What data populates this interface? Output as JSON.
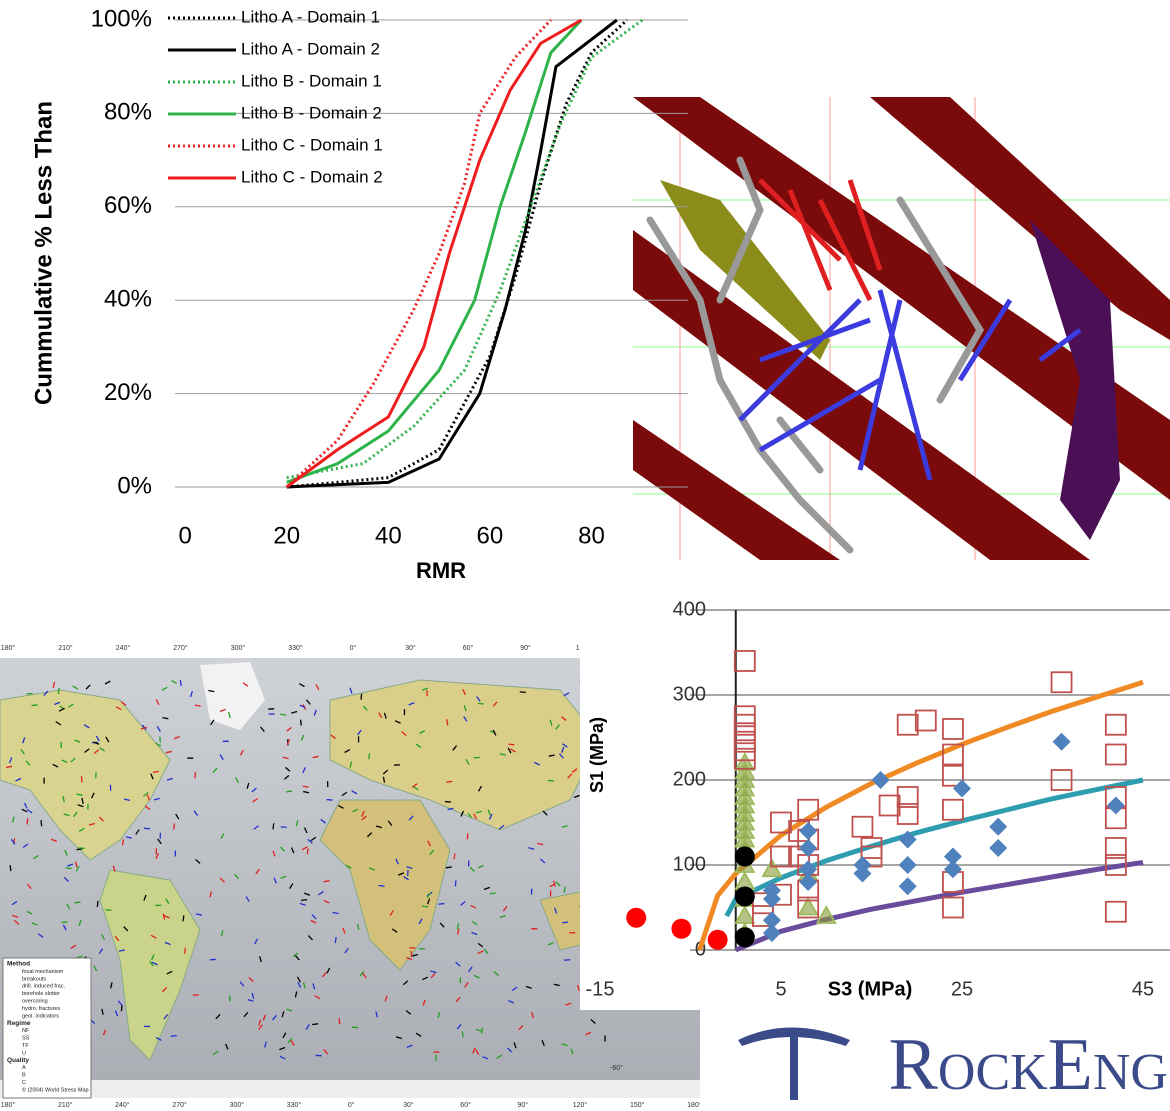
{
  "chart_data": [
    {
      "type": "line",
      "y_label": "Cummulative % Less Than",
      "x_label": "RMR",
      "xlim": [
        -2,
        99
      ],
      "xticks": [
        0,
        20,
        40,
        60,
        80
      ],
      "ylim": [
        0,
        100
      ],
      "yticks": [
        {
          "value": 0,
          "label": "0%"
        },
        {
          "value": 20,
          "label": "20%"
        },
        {
          "value": 40,
          "label": "40%"
        },
        {
          "value": 60,
          "label": "60%"
        },
        {
          "value": 80,
          "label": "80%"
        },
        {
          "value": 100,
          "label": "100%"
        }
      ],
      "grid": true,
      "legend": "top-left",
      "series": [
        {
          "name": "Litho A - Domain 1",
          "color": "#000000",
          "dash": true,
          "x": [
            20,
            40,
            50,
            60,
            65,
            70,
            75,
            80,
            87
          ],
          "values": [
            0,
            2,
            8,
            28,
            45,
            65,
            82,
            93,
            100
          ]
        },
        {
          "name": "Litho A - Domain 2",
          "color": "#000000",
          "dash": false,
          "x": [
            20,
            40,
            50,
            58,
            63,
            67,
            70,
            73,
            85
          ],
          "values": [
            0,
            1,
            6,
            20,
            38,
            55,
            72,
            90,
            100
          ]
        },
        {
          "name": "Litho B - Domain 1",
          "color": "#2eb34a",
          "dash": true,
          "x": [
            20,
            35,
            45,
            55,
            62,
            68,
            74,
            80,
            90
          ],
          "values": [
            2,
            5,
            13,
            25,
            42,
            60,
            78,
            92,
            100
          ]
        },
        {
          "name": "Litho B - Domain 2",
          "color": "#2eb34a",
          "dash": false,
          "x": [
            20,
            30,
            40,
            50,
            57,
            62,
            67,
            72,
            78
          ],
          "values": [
            1,
            5,
            12,
            25,
            40,
            60,
            76,
            93,
            100
          ]
        },
        {
          "name": "Litho C - Domain 1",
          "color": "#ee1c1c",
          "dash": true,
          "x": [
            20,
            30,
            37,
            45,
            50,
            55,
            58,
            65,
            72
          ],
          "values": [
            0,
            10,
            22,
            38,
            50,
            65,
            80,
            92,
            100
          ]
        },
        {
          "name": "Litho C - Domain 2",
          "color": "#ee1c1c",
          "dash": false,
          "x": [
            20,
            30,
            40,
            47,
            52,
            58,
            64,
            70,
            78
          ],
          "values": [
            0,
            8,
            15,
            30,
            50,
            70,
            85,
            95,
            100
          ]
        }
      ]
    },
    {
      "type": "scatter",
      "x_label": "S3 (MPa)",
      "y_label": "S1 (MPa)",
      "xlim": [
        -15,
        45
      ],
      "xticks": [
        -15,
        5,
        25,
        45
      ],
      "ylim": [
        0,
        400
      ],
      "yticks": [
        0,
        100,
        200,
        300,
        400
      ],
      "grid": true,
      "series": [
        {
          "marker": "line",
          "color": "#f08a24",
          "x": [
            -4,
            -2,
            0,
            5,
            10,
            15,
            20,
            25,
            30,
            35,
            40,
            45
          ],
          "values": [
            0,
            64,
            90,
            135,
            168,
            196,
            220,
            242,
            262,
            281,
            298,
            315
          ]
        },
        {
          "marker": "line",
          "color": "#2e9db0",
          "x": [
            -1,
            0,
            5,
            10,
            15,
            20,
            25,
            30,
            35,
            40,
            45
          ],
          "values": [
            40,
            60,
            85,
            105,
            122,
            138,
            152,
            165,
            178,
            189,
            200
          ]
        },
        {
          "marker": "line",
          "color": "#6a4c9c",
          "x": [
            0,
            5,
            10,
            15,
            20,
            25,
            30,
            35,
            40,
            45
          ],
          "values": [
            0,
            22,
            36,
            48,
            58,
            68,
            77,
            86,
            95,
            103
          ]
        },
        {
          "marker": "triangle",
          "color": "#9bbb59",
          "x": [
            1,
            1,
            1,
            1,
            1,
            1,
            1,
            1,
            1,
            1,
            1,
            1,
            1,
            1,
            1,
            1,
            4,
            8,
            8,
            10
          ],
          "values": [
            220,
            210,
            200,
            190,
            180,
            170,
            160,
            150,
            140,
            130,
            120,
            100,
            80,
            60,
            40,
            20,
            95,
            90,
            50,
            40
          ]
        },
        {
          "marker": "square",
          "color": "#c0504d",
          "x": [
            1,
            1,
            1,
            1,
            1,
            1,
            1,
            3,
            3,
            5,
            5,
            5,
            7,
            7,
            8,
            8,
            8,
            8,
            8,
            14,
            15,
            15,
            17,
            19,
            19,
            19,
            21,
            24,
            24,
            24,
            24,
            24,
            24,
            36,
            36,
            42,
            42,
            42,
            42,
            42,
            42,
            42
          ],
          "values": [
            340,
            275,
            265,
            255,
            245,
            235,
            225,
            40,
            55,
            150,
            110,
            65,
            140,
            110,
            165,
            130,
            100,
            70,
            50,
            145,
            110,
            120,
            170,
            180,
            265,
            160,
            270,
            260,
            230,
            205,
            165,
            80,
            50,
            315,
            200,
            265,
            230,
            180,
            155,
            120,
            100,
            45
          ]
        },
        {
          "marker": "diamond",
          "color": "#4f81bd",
          "x": [
            4,
            4,
            4,
            4,
            8,
            8,
            8,
            8,
            14,
            14,
            16,
            19,
            19,
            19,
            24,
            24,
            25,
            29,
            29,
            36,
            42
          ],
          "values": [
            20,
            35,
            60,
            70,
            140,
            120,
            95,
            80,
            90,
            100,
            200,
            100,
            75,
            130,
            110,
            95,
            190,
            145,
            120,
            245,
            170
          ]
        },
        {
          "marker": "circle",
          "color": "#000000",
          "x": [
            1,
            1,
            1
          ],
          "values": [
            15,
            63,
            110
          ]
        },
        {
          "marker": "circle",
          "color": "#ff0000",
          "x": [
            -11,
            -6,
            -2
          ],
          "values": [
            38,
            25,
            12
          ]
        }
      ]
    }
  ],
  "map": {
    "top_labels": [
      "180°",
      "210°",
      "240°",
      "270°",
      "300°",
      "330°",
      "0°",
      "30°",
      "60°",
      "90°",
      "120°"
    ],
    "bottom_labels": [
      "180°",
      "210°",
      "240°",
      "270°",
      "300°",
      "330°",
      "0°",
      "30°",
      "60°",
      "90°",
      "120°",
      "150°",
      "180°"
    ],
    "side_label": "-60°",
    "legend": [
      "Method",
      "focal mechanism",
      "breakouts",
      "drill. induced frac.",
      "borehole slotter",
      "overcoring",
      "hydro. fractures",
      "geol. indicators",
      "Regime",
      "NF",
      "SS",
      "TF",
      "U",
      "Quality",
      "A",
      "B",
      "C",
      "© (2004) World Stress Map"
    ]
  },
  "logo": {
    "text": "RockEng"
  }
}
